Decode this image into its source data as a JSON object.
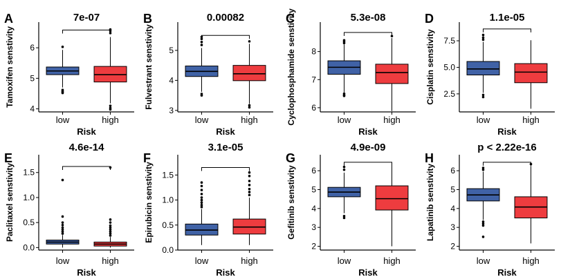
{
  "colors": {
    "low": "#4062A6",
    "high": "#EE3C3F",
    "outline": "#000000"
  },
  "chart_data": [
    {
      "type": "box",
      "panel": "A",
      "title": "7e-07",
      "xlabel": "Risk",
      "ylabel": "Tamoxifen senstivity",
      "categories": [
        "low",
        "high"
      ],
      "ylim": [
        3.9,
        6.75
      ],
      "yticks": [
        4,
        5,
        6
      ],
      "ytick_labels": [
        "4",
        "5",
        "6"
      ],
      "boxes": [
        {
          "group": "low",
          "whisker_low": 4.7,
          "q1": 5.12,
          "median": 5.24,
          "q3": 5.37,
          "whisker_high": 5.93,
          "outliers": [
            6.03,
            4.62,
            4.58,
            4.55,
            4.52
          ]
        },
        {
          "group": "high",
          "whisker_low": 4.18,
          "q1": 4.88,
          "median": 5.12,
          "q3": 5.39,
          "whisker_high": 6.35,
          "outliers": [
            6.48,
            6.55,
            6.6,
            4.1,
            4.03,
            3.98
          ]
        }
      ],
      "bracket_y": 6.58
    },
    {
      "type": "box",
      "panel": "B",
      "title": "0.00082",
      "xlabel": "Risk",
      "ylabel": "Fulvestrant senstivity",
      "categories": [
        "low",
        "high"
      ],
      "ylim": [
        2.95,
        5.85
      ],
      "yticks": [
        3,
        4,
        5
      ],
      "ytick_labels": [
        "3",
        "4",
        "5"
      ],
      "boxes": [
        {
          "group": "low",
          "whisker_low": 3.62,
          "q1": 4.13,
          "median": 4.3,
          "q3": 4.48,
          "whisker_high": 5.08,
          "outliers": [
            5.18,
            5.28,
            5.38,
            5.45,
            3.55,
            3.5
          ]
        },
        {
          "group": "high",
          "whisker_low": 3.22,
          "q1": 3.99,
          "median": 4.22,
          "q3": 4.5,
          "whisker_high": 5.22,
          "outliers": [
            5.3,
            3.17,
            3.1
          ]
        }
      ],
      "bracket_y": 5.5
    },
    {
      "type": "box",
      "panel": "C",
      "title": "5.3e-08",
      "xlabel": "Risk",
      "ylabel": "Cyclophosphamide senstivity",
      "categories": [
        "low",
        "high"
      ],
      "ylim": [
        5.85,
        8.95
      ],
      "yticks": [
        6,
        7,
        8
      ],
      "ytick_labels": [
        "6",
        "7",
        "8"
      ],
      "boxes": [
        {
          "group": "low",
          "whisker_low": 6.55,
          "q1": 7.19,
          "median": 7.44,
          "q3": 7.67,
          "whisker_high": 8.25,
          "outliers": [
            8.3,
            8.35,
            8.4,
            6.5,
            6.45,
            6.42
          ]
        },
        {
          "group": "high",
          "whisker_low": 5.88,
          "q1": 6.86,
          "median": 7.25,
          "q3": 7.55,
          "whisker_high": 8.48,
          "outliers": [
            8.55
          ]
        }
      ],
      "bracket_y": 8.68
    },
    {
      "type": "box",
      "panel": "D",
      "title": "1.1e-05",
      "xlabel": "Risk",
      "ylabel": "Cisplatin senstivity",
      "categories": [
        "low",
        "high"
      ],
      "ylim": [
        0.8,
        9.0
      ],
      "yticks": [
        2.5,
        5.0,
        7.5
      ],
      "ytick_labels": [
        "2.5",
        "5.0",
        "7.5"
      ],
      "boxes": [
        {
          "group": "low",
          "whisker_low": 2.6,
          "q1": 4.28,
          "median": 4.85,
          "q3": 5.55,
          "whisker_high": 7.4,
          "outliers": [
            7.6,
            7.8,
            8.05,
            2.4,
            2.2
          ]
        },
        {
          "group": "high",
          "whisker_low": 1.1,
          "q1": 3.55,
          "median": 4.55,
          "q3": 5.35,
          "whisker_high": 7.55,
          "outliers": []
        }
      ],
      "bracket_y": 8.62
    },
    {
      "type": "box",
      "panel": "E",
      "title": "4.6e-14",
      "xlabel": "Risk",
      "ylabel": "Paclitaxel senstivity",
      "categories": [
        "low",
        "high"
      ],
      "ylim": [
        -0.05,
        1.8
      ],
      "yticks": [
        0.0,
        0.5,
        1.0,
        1.5
      ],
      "ytick_labels": [
        "0.0",
        "0.5",
        "1.0",
        "1.5"
      ],
      "boxes": [
        {
          "group": "low",
          "whisker_low": 0.0,
          "q1": 0.07,
          "median": 0.11,
          "q3": 0.15,
          "whisker_high": 0.25,
          "outliers": [
            0.28,
            0.32,
            0.36,
            0.4,
            0.45,
            0.5,
            0.62,
            1.35
          ]
        },
        {
          "group": "high",
          "whisker_low": 0.0,
          "q1": 0.03,
          "median": 0.07,
          "q3": 0.11,
          "whisker_high": 0.21,
          "outliers": [
            0.24,
            0.28,
            0.32,
            0.36,
            0.4,
            0.44,
            0.5,
            0.56,
            1.6
          ]
        }
      ],
      "bracket_y": 1.62
    },
    {
      "type": "box",
      "panel": "F",
      "title": "3.1e-05",
      "xlabel": "Risk",
      "ylabel": "Epirubicin senstivity",
      "categories": [
        "low",
        "high"
      ],
      "ylim": [
        0.0,
        1.85
      ],
      "yticks": [
        0.0,
        0.5,
        1.0,
        1.5
      ],
      "ytick_labels": [
        "0.0",
        "0.5",
        "1.0",
        "1.5"
      ],
      "boxes": [
        {
          "group": "low",
          "whisker_low": 0.1,
          "q1": 0.3,
          "median": 0.4,
          "q3": 0.52,
          "whisker_high": 0.82,
          "outliers": [
            0.86,
            0.9,
            0.95,
            1.0,
            1.05,
            1.12,
            1.2,
            1.28,
            1.35
          ]
        },
        {
          "group": "high",
          "whisker_low": 0.1,
          "q1": 0.32,
          "median": 0.46,
          "q3": 0.62,
          "whisker_high": 1.05,
          "outliers": [
            1.1,
            1.16,
            1.22,
            1.3,
            1.38,
            1.48,
            1.55
          ]
        }
      ],
      "bracket_y": 1.65
    },
    {
      "type": "box",
      "panel": "G",
      "title": "4.9e-09",
      "xlabel": "Risk",
      "ylabel": "Gefitinib senstivity",
      "categories": [
        "low",
        "high"
      ],
      "ylim": [
        1.8,
        6.7
      ],
      "yticks": [
        2,
        3,
        4,
        5,
        6
      ],
      "ytick_labels": [
        "2",
        "3",
        "4",
        "5",
        "6"
      ],
      "boxes": [
        {
          "group": "low",
          "whisker_low": 3.75,
          "q1": 4.62,
          "median": 4.87,
          "q3": 5.12,
          "whisker_high": 5.9,
          "outliers": [
            6.05,
            6.2,
            3.6,
            3.5
          ]
        },
        {
          "group": "high",
          "whisker_low": 2.0,
          "q1": 3.92,
          "median": 4.52,
          "q3": 5.2,
          "whisker_high": 6.4,
          "outliers": []
        }
      ],
      "bracket_y": 6.45
    },
    {
      "type": "box",
      "panel": "H",
      "title": "p < 2.22e-16",
      "xlabel": "Risk",
      "ylabel": "Lapatinib senstivity",
      "categories": [
        "low",
        "high"
      ],
      "ylim": [
        1.8,
        6.7
      ],
      "yticks": [
        2,
        3,
        4,
        5,
        6
      ],
      "ytick_labels": [
        "2",
        "3",
        "4",
        "5",
        "6"
      ],
      "boxes": [
        {
          "group": "low",
          "whisker_low": 3.4,
          "q1": 4.4,
          "median": 4.72,
          "q3": 5.05,
          "whisker_high": 5.95,
          "outliers": [
            6.05,
            6.15,
            3.3,
            3.2,
            3.1,
            2.5
          ]
        },
        {
          "group": "high",
          "whisker_low": 2.15,
          "q1": 3.5,
          "median": 4.08,
          "q3": 4.62,
          "whisker_high": 6.25,
          "outliers": [
            6.35
          ]
        }
      ],
      "bracket_y": 6.45
    }
  ]
}
